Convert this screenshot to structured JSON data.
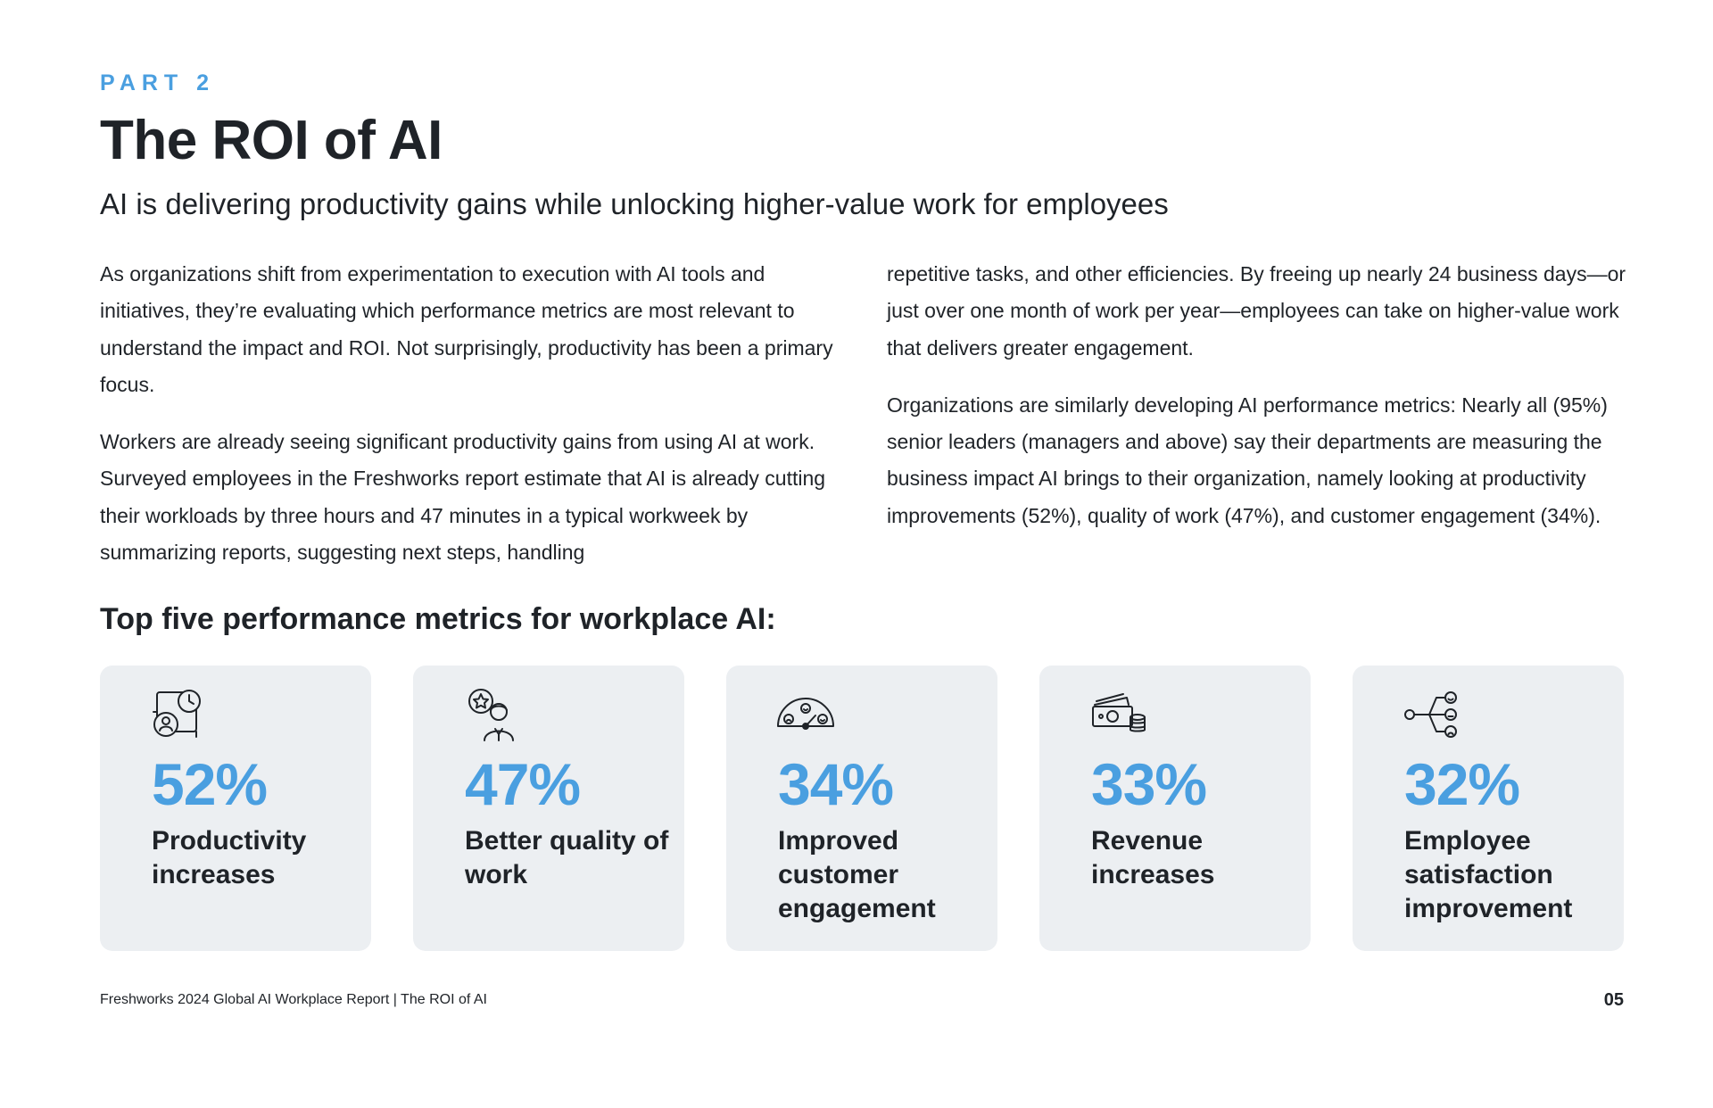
{
  "header": {
    "part_label": "PART 2",
    "title": "The ROI of AI",
    "subtitle": "AI is delivering productivity gains while unlocking higher-value work for employees"
  },
  "body": {
    "left_paragraphs": [
      "As organizations shift from experimentation to execution with AI tools and initiatives, they’re evaluating which performance metrics are most relevant to understand the impact and ROI. Not surprisingly, productivity has been a primary focus.",
      "Workers are already seeing significant productivity gains from using AI at work. Surveyed employees in the Freshworks report estimate that AI is already cutting their workloads by three hours and 47 minutes in a typical workweek by summarizing reports, suggesting next steps, handling"
    ],
    "right_paragraphs": [
      "repetitive tasks, and other efficiencies. By freeing up nearly 24 business days—or just over one month of work per year—employees can take on higher-value work that delivers greater engagement.",
      "Organizations are similarly developing AI performance metrics: Nearly all (95%) senior leaders (managers and above) say their departments are measuring the business impact AI brings to their organization, namely looking at productivity improvements (52%), quality of work (47%), and customer engagement (34%)."
    ]
  },
  "metrics": {
    "heading": "Top five performance metrics for workplace AI:",
    "cards": [
      {
        "icon": "productivity-icon",
        "value": "52%",
        "label": "Productivity increases"
      },
      {
        "icon": "quality-of-work-icon",
        "value": "47%",
        "label": "Better quality of work"
      },
      {
        "icon": "engagement-gauge-icon",
        "value": "34%",
        "label": "Improved customer engagement"
      },
      {
        "icon": "revenue-money-icon",
        "value": "33%",
        "label": "Revenue increases"
      },
      {
        "icon": "satisfaction-network-icon",
        "value": "32%",
        "label": "Employee satisfaction improvement"
      }
    ]
  },
  "footer": {
    "text": "Freshworks 2024 Global AI Workplace Report | The ROI of AI",
    "page_number": "05"
  },
  "colors": {
    "accent": "#4a9fe0",
    "text": "#1f2328",
    "card_bg": "#eceff2"
  }
}
